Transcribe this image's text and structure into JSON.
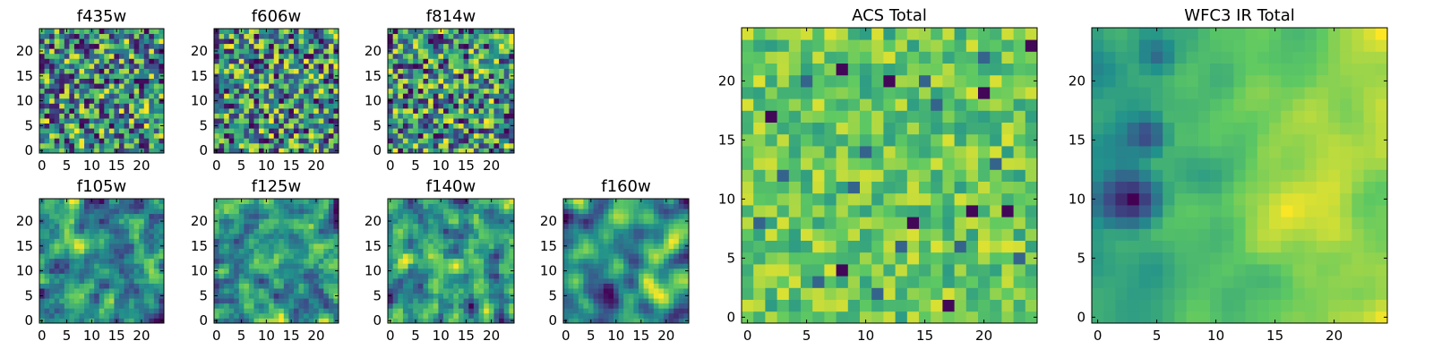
{
  "figure": {
    "background": "#ffffff"
  },
  "colormap": [
    "#440154",
    "#3b528b",
    "#21918c",
    "#5ec962",
    "#fde725"
  ],
  "chart_data": [
    {
      "type": "heatmap",
      "title": "f435w",
      "grid_size": 25,
      "xlim": [
        0,
        24
      ],
      "ylim": [
        0,
        24
      ],
      "xticks": [
        0,
        5,
        10,
        15,
        20
      ],
      "yticks": [
        0,
        5,
        10,
        15,
        20
      ],
      "pattern": "uncorrelated pixel noise",
      "value_range": [
        0,
        1
      ],
      "seed": 11,
      "smooth": 0
    },
    {
      "type": "heatmap",
      "title": "f606w",
      "grid_size": 25,
      "xlim": [
        0,
        24
      ],
      "ylim": [
        0,
        24
      ],
      "xticks": [
        0,
        5,
        10,
        15,
        20
      ],
      "yticks": [
        0,
        5,
        10,
        15,
        20
      ],
      "pattern": "uncorrelated pixel noise",
      "value_range": [
        0,
        1
      ],
      "seed": 23,
      "smooth": 0
    },
    {
      "type": "heatmap",
      "title": "f814w",
      "grid_size": 25,
      "xlim": [
        0,
        24
      ],
      "ylim": [
        0,
        24
      ],
      "xticks": [
        0,
        5,
        10,
        15,
        20
      ],
      "yticks": [
        0,
        5,
        10,
        15,
        20
      ],
      "pattern": "uncorrelated pixel noise",
      "value_range": [
        0,
        1
      ],
      "seed": 37,
      "smooth": 0
    },
    {
      "type": "heatmap",
      "title": "f105w",
      "grid_size": 25,
      "xlim": [
        0,
        24
      ],
      "ylim": [
        0,
        24
      ],
      "xticks": [
        0,
        5,
        10,
        15,
        20
      ],
      "yticks": [
        0,
        5,
        10,
        15,
        20
      ],
      "pattern": "spatially correlated noise",
      "value_range": [
        0,
        1
      ],
      "seed": 41,
      "smooth": 1
    },
    {
      "type": "heatmap",
      "title": "f125w",
      "grid_size": 25,
      "xlim": [
        0,
        24
      ],
      "ylim": [
        0,
        24
      ],
      "xticks": [
        0,
        5,
        10,
        15,
        20
      ],
      "yticks": [
        0,
        5,
        10,
        15,
        20
      ],
      "pattern": "spatially correlated noise",
      "value_range": [
        0,
        1
      ],
      "seed": 53,
      "smooth": 1
    },
    {
      "type": "heatmap",
      "title": "f140w",
      "grid_size": 25,
      "xlim": [
        0,
        24
      ],
      "ylim": [
        0,
        24
      ],
      "xticks": [
        0,
        5,
        10,
        15,
        20
      ],
      "yticks": [
        0,
        5,
        10,
        15,
        20
      ],
      "pattern": "spatially correlated noise",
      "value_range": [
        0,
        1
      ],
      "seed": 67,
      "smooth": 1
    },
    {
      "type": "heatmap",
      "title": "f160w",
      "grid_size": 25,
      "xlim": [
        0,
        24
      ],
      "ylim": [
        0,
        24
      ],
      "xticks": [
        0,
        5,
        10,
        15,
        20
      ],
      "yticks": [
        0,
        5,
        10,
        15,
        20
      ],
      "pattern": "smooth correlated noise",
      "value_range": [
        0,
        1
      ],
      "seed": 79,
      "smooth": 2
    },
    {
      "type": "heatmap",
      "title": "ACS Total",
      "grid_size": 25,
      "xlim": [
        0,
        24
      ],
      "ylim": [
        0,
        24
      ],
      "xticks": [
        0,
        5,
        10,
        15,
        20
      ],
      "yticks": [
        0,
        5,
        10,
        15,
        20
      ],
      "pattern": "mostly green-yellow with scattered dark pixels",
      "value_range": [
        0,
        1
      ],
      "seed": 97,
      "smooth": 0
    },
    {
      "type": "heatmap",
      "title": "WFC3 IR Total",
      "grid_size": 25,
      "xlim": [
        0,
        24
      ],
      "ylim": [
        0,
        24
      ],
      "xticks": [
        0,
        5,
        10,
        15,
        20
      ],
      "yticks": [
        0,
        5,
        10,
        15,
        20
      ],
      "pattern": "smooth field, dark blob near (3,10), bright region on right",
      "value_range": [
        0,
        1
      ],
      "seed": 113,
      "smooth": 2
    }
  ]
}
